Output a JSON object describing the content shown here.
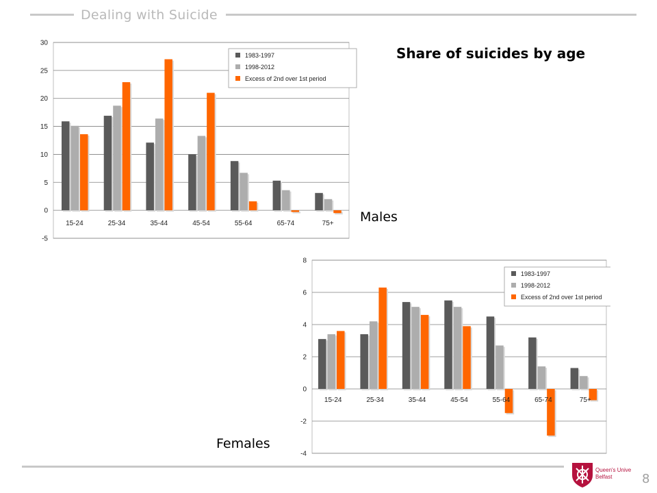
{
  "header": {
    "title": "Dealing with Suicide"
  },
  "headline": "Share of suicides by age",
  "panels": {
    "males_label": "Males",
    "females_label": "Females"
  },
  "footer": {
    "page_number": "8",
    "logo_text": "Queen's University Belfast"
  },
  "colors": {
    "series1": "#5a5a5a",
    "series2": "#adadad",
    "series3": "#ff6600",
    "grid": "#7f7f7f",
    "rule": "#c8c8c8",
    "logo_red": "#b5123e"
  },
  "chart_data": [
    {
      "type": "bar",
      "categories": [
        "15-24",
        "25-34",
        "35-44",
        "45-54",
        "55-64",
        "65-74",
        "75+"
      ],
      "series": [
        {
          "name": "1983-1997",
          "values": [
            15.9,
            16.9,
            12.1,
            10.0,
            8.8,
            5.3,
            3.1
          ]
        },
        {
          "name": "1998-2012",
          "values": [
            15.1,
            18.7,
            16.4,
            13.3,
            6.7,
            3.6,
            2.0
          ]
        },
        {
          "name": "Excess of 2nd over 1st period",
          "values": [
            13.6,
            22.9,
            27.0,
            21.0,
            1.6,
            -0.3,
            -0.5
          ]
        }
      ],
      "ylim": [
        -5,
        30
      ],
      "yticks": [
        "-5",
        "0",
        "5",
        "10",
        "15",
        "20",
        "25",
        "30"
      ],
      "legend_position": "top-right",
      "grid": true
    },
    {
      "type": "bar",
      "categories": [
        "15-24",
        "25-34",
        "35-44",
        "45-54",
        "55-64",
        "65-74",
        "75+"
      ],
      "series": [
        {
          "name": "1983-1997",
          "values": [
            3.1,
            3.4,
            5.4,
            5.5,
            4.5,
            3.2,
            1.3
          ]
        },
        {
          "name": "1998-2012",
          "values": [
            3.4,
            4.2,
            5.1,
            5.1,
            2.7,
            1.4,
            0.8
          ]
        },
        {
          "name": "Excess of 2nd over 1st period",
          "values": [
            3.6,
            6.3,
            4.6,
            3.9,
            -1.5,
            -2.9,
            -0.7
          ]
        }
      ],
      "ylim": [
        -4,
        8
      ],
      "yticks": [
        "-4",
        "-2",
        "0",
        "2",
        "4",
        "6",
        "8"
      ],
      "legend_position": "top-right",
      "grid": true
    }
  ]
}
